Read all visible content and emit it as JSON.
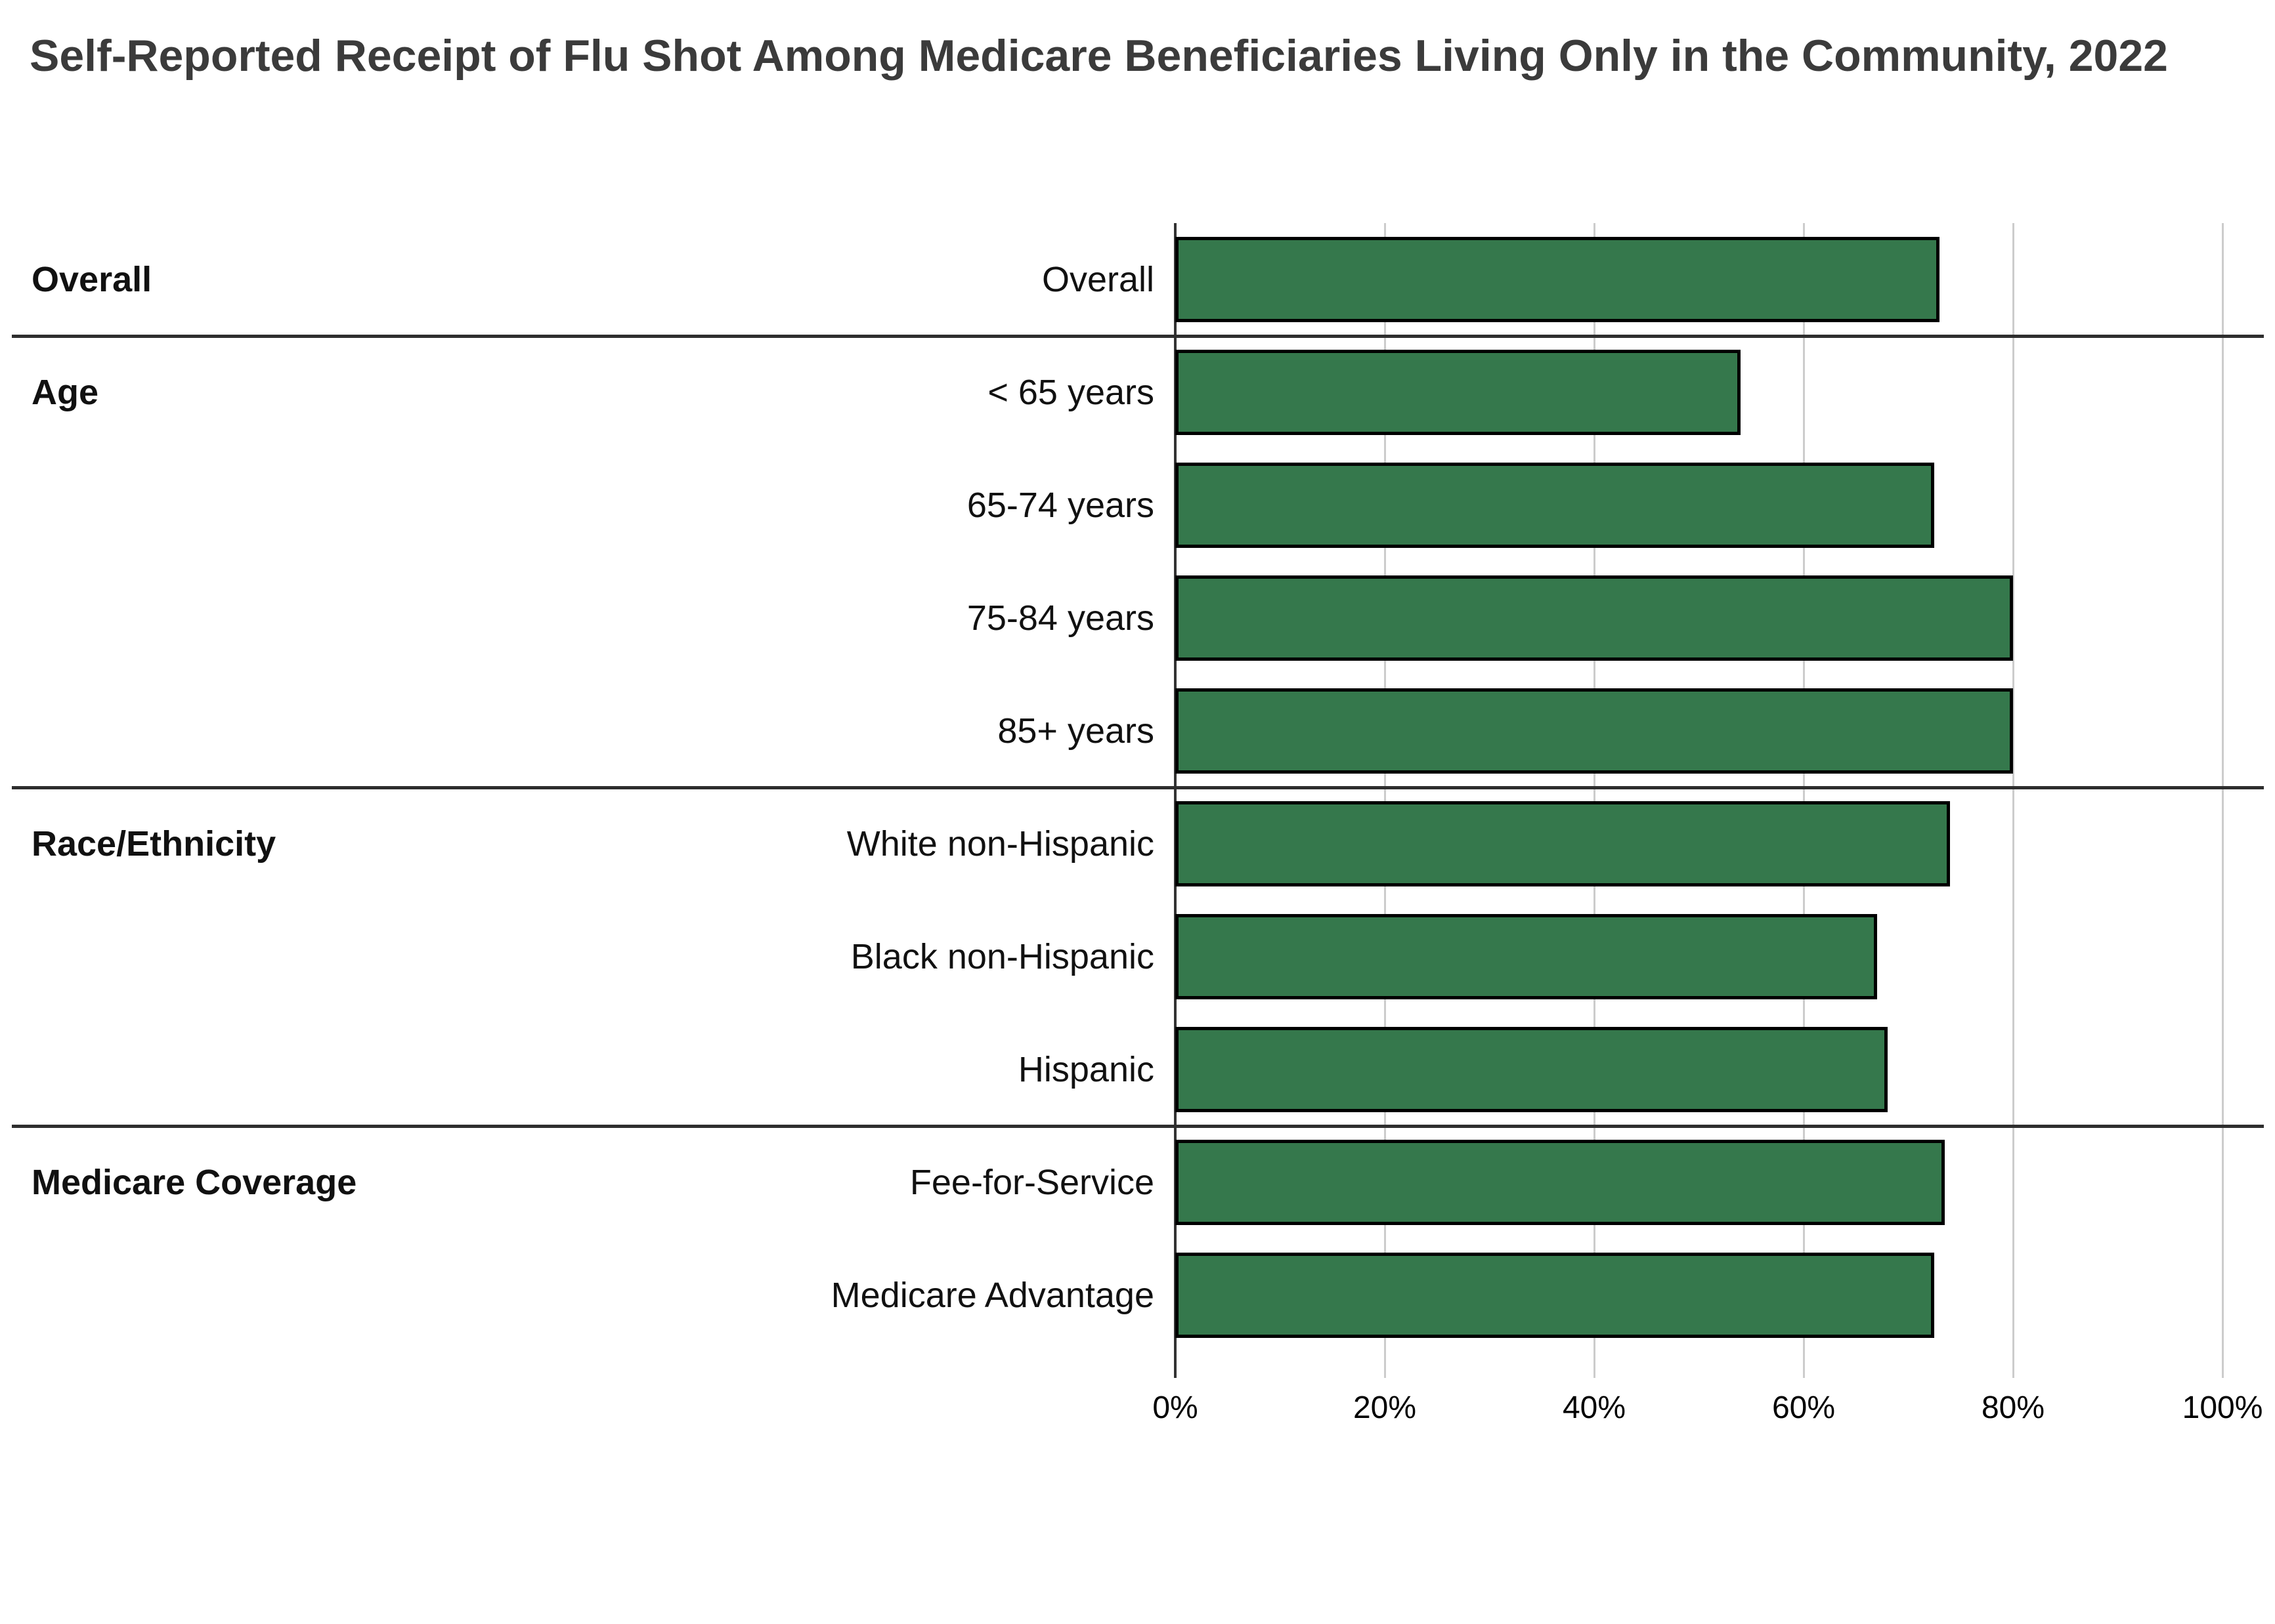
{
  "title": "Self-Reported Receipt of Flu Shot Among Medicare Beneficiaries Living Only in the Community, 2022",
  "colors": {
    "background": "#ffffff",
    "bar_fill": "#35784C",
    "bar_border": "#000000",
    "gridline": "#cccccc",
    "zero_axis_line": "#333333",
    "group_separator": "#2e2e2e",
    "title_text": "#3b3b3b",
    "label_text": "#111111"
  },
  "chart_data": {
    "type": "bar",
    "orientation": "horizontal",
    "title": "Self-Reported Receipt of Flu Shot Among Medicare Beneficiaries Living Only in the Community, 2022",
    "xlabel": "",
    "ylabel": "",
    "unit": "percent",
    "x_range": [
      0,
      100
    ],
    "x_ticks": [
      "0%",
      "20%",
      "40%",
      "60%",
      "80%",
      "100%"
    ],
    "grid": "vertical gridlines every 20%",
    "legend": "none",
    "groups": [
      {
        "label": "Overall",
        "rows": [
          {
            "label": "Overall",
            "value": 73
          }
        ]
      },
      {
        "label": "Age",
        "rows": [
          {
            "label": "< 65 years",
            "value": 54
          },
          {
            "label": "65-74 years",
            "value": 72.5
          },
          {
            "label": "75-84 years",
            "value": 80
          },
          {
            "label": "85+ years",
            "value": 80
          }
        ]
      },
      {
        "label": "Race/Ethnicity",
        "rows": [
          {
            "label": "White non-Hispanic",
            "value": 74
          },
          {
            "label": "Black non-Hispanic",
            "value": 67
          },
          {
            "label": "Hispanic",
            "value": 68
          }
        ]
      },
      {
        "label": "Medicare Coverage",
        "rows": [
          {
            "label": "Fee-for-Service",
            "value": 73.5
          },
          {
            "label": "Medicare Advantage",
            "value": 72.5
          }
        ]
      }
    ]
  }
}
